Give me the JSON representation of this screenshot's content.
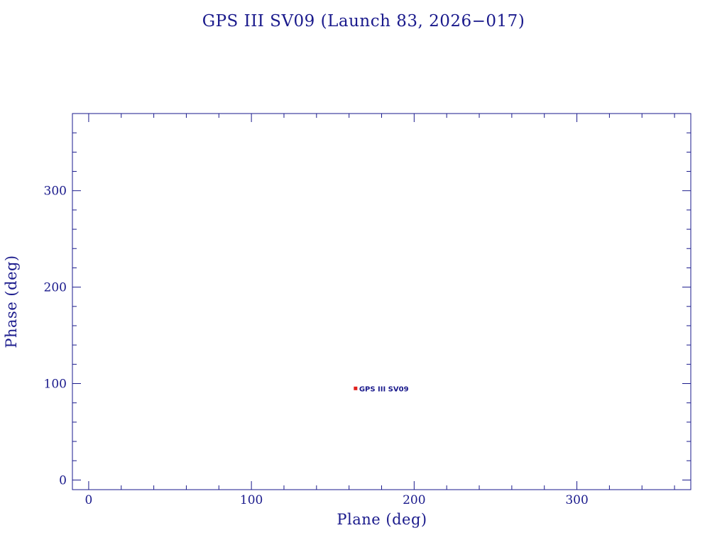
{
  "colors": {
    "ink": "#1a1a8c",
    "marker": "#e0201c",
    "background": "#ffffff"
  },
  "chart_data": {
    "type": "scatter",
    "title": "GPS III SV09 (Launch 83, 2026−017)",
    "xlabel": "Plane (deg)",
    "ylabel": "Phase (deg)",
    "xlim": [
      -10,
      370
    ],
    "ylim": [
      -10,
      380
    ],
    "x_ticks": [
      0,
      100,
      200,
      300
    ],
    "y_ticks": [
      0,
      100,
      200,
      300
    ],
    "x_tick_labels": [
      "0",
      "100",
      "200",
      "300"
    ],
    "y_tick_labels": [
      "0",
      "100",
      "200",
      "300"
    ],
    "x_minor_step": 20,
    "y_minor_step": 20,
    "grid": false,
    "legend": "none",
    "points": [
      {
        "x": 164,
        "y": 95,
        "label": "GPS III SV09"
      }
    ]
  }
}
